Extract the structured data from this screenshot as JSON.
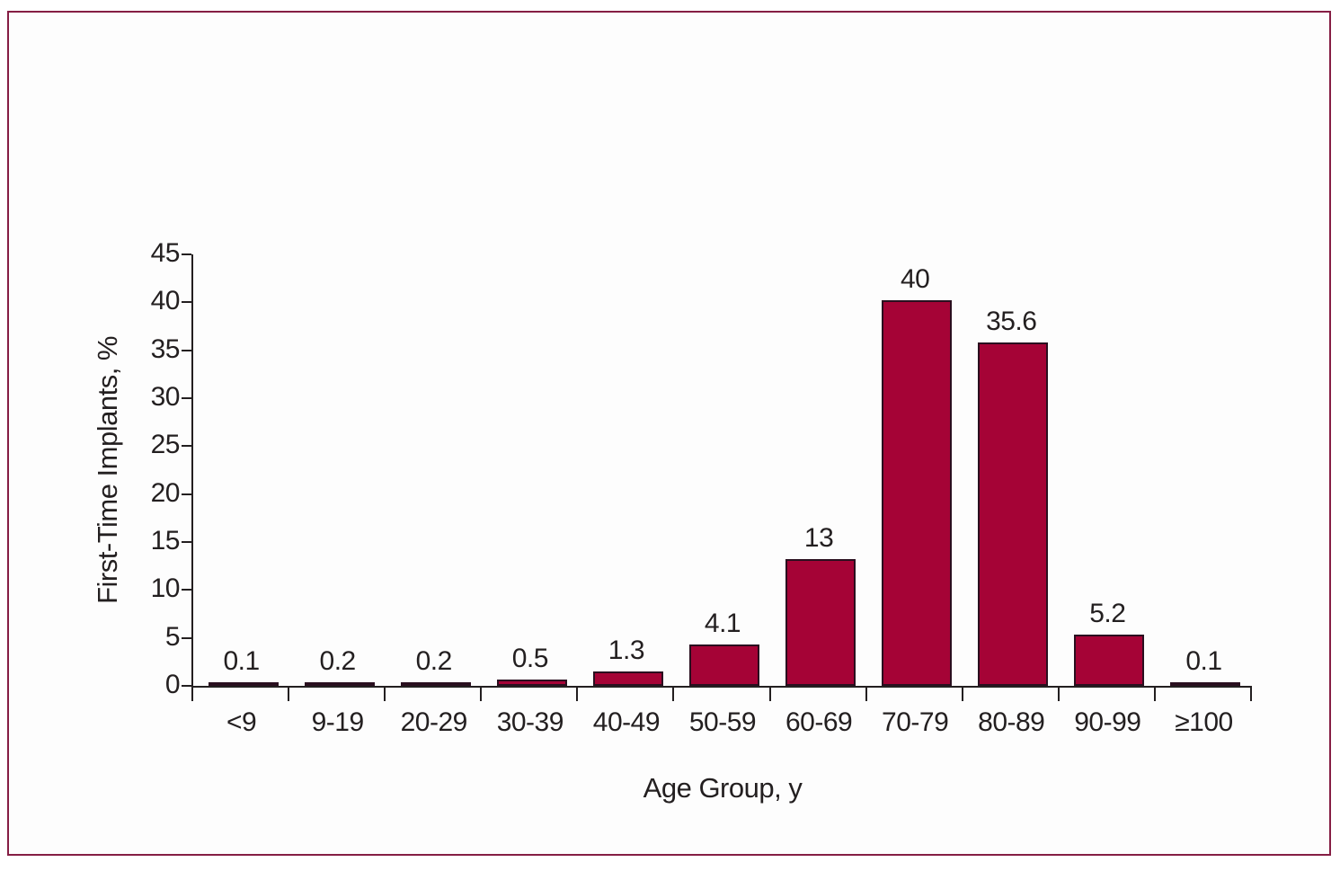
{
  "figure": {
    "border_color": "#851e44",
    "background_color": "#fdfdfd"
  },
  "chart_data": {
    "type": "bar",
    "categories": [
      "<9",
      "9-19",
      "20-29",
      "30-39",
      "40-49",
      "50-59",
      "60-69",
      "70-79",
      "80-89",
      "90-99",
      "≥100"
    ],
    "values": [
      0.1,
      0.2,
      0.2,
      0.5,
      1.3,
      4.1,
      13,
      40,
      35.6,
      5.2,
      0.1
    ],
    "value_labels": [
      "0.1",
      "0.2",
      "0.2",
      "0.5",
      "1.3",
      "4.1",
      "13",
      "40",
      "35.6",
      "5.2",
      "0.1"
    ],
    "title": "",
    "xlabel": "Age Group, y",
    "ylabel": "First-Time Implants, %",
    "ylim": [
      0,
      45
    ],
    "yticks": [
      0,
      5,
      10,
      15,
      20,
      25,
      30,
      35,
      40,
      45
    ],
    "grid": false,
    "legend": null,
    "bar_color": "#a50336",
    "bar_border_color": "#2a0f1f",
    "axis_color": "#231f20",
    "text_color": "#231f20"
  }
}
